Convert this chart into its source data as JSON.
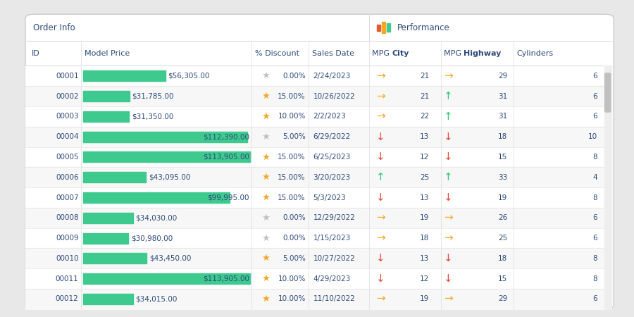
{
  "bg_color": "#e8e8e8",
  "table_bg": "#ffffff",
  "border_color": "#cccccc",
  "row_bg_even": "#ffffff",
  "row_bg_odd": "#f7f7f7",
  "text_color": "#2d4a7a",
  "bar_color": "#3ec98e",
  "scrollbar_color": "#c0c0c0",
  "group_line_color": "#dddddd",
  "star_gold": "#f5a623",
  "star_gray": "#c0c0c0",
  "arrow_orange": "#f5a623",
  "arrow_green": "#2ecc71",
  "arrow_red": "#e74c3c",
  "icon_colors": [
    "#e05c2a",
    "#f5a623",
    "#3ec98e"
  ],
  "rows": [
    {
      "id": "00001",
      "price": 56305.0,
      "discount": "0.00%",
      "date": "2/24/2023",
      "star": "gray",
      "city_arrow": "orange",
      "city": 21,
      "hwy_arrow": "orange",
      "hwy": 29,
      "cyl": 6
    },
    {
      "id": "00002",
      "price": 31785.0,
      "discount": "15.00%",
      "date": "10/26/2022",
      "star": "gold",
      "city_arrow": "orange",
      "city": 21,
      "hwy_arrow": "green",
      "hwy": 31,
      "cyl": 6
    },
    {
      "id": "00003",
      "price": 31350.0,
      "discount": "10.00%",
      "date": "2/2/2023",
      "star": "gold",
      "city_arrow": "orange",
      "city": 22,
      "hwy_arrow": "green",
      "hwy": 31,
      "cyl": 6
    },
    {
      "id": "00004",
      "price": 112390.0,
      "discount": "5.00%",
      "date": "6/29/2022",
      "star": "gray",
      "city_arrow": "red",
      "city": 13,
      "hwy_arrow": "red",
      "hwy": 18,
      "cyl": 10
    },
    {
      "id": "00005",
      "price": 113905.0,
      "discount": "15.00%",
      "date": "6/25/2023",
      "star": "gold",
      "city_arrow": "red",
      "city": 12,
      "hwy_arrow": "red",
      "hwy": 15,
      "cyl": 8
    },
    {
      "id": "00006",
      "price": 43095.0,
      "discount": "15.00%",
      "date": "3/20/2023",
      "star": "gold",
      "city_arrow": "green",
      "city": 25,
      "hwy_arrow": "green",
      "hwy": 33,
      "cyl": 4
    },
    {
      "id": "00007",
      "price": 99995.0,
      "discount": "15.00%",
      "date": "5/3/2023",
      "star": "gold",
      "city_arrow": "red",
      "city": 13,
      "hwy_arrow": "red",
      "hwy": 19,
      "cyl": 8
    },
    {
      "id": "00008",
      "price": 34030.0,
      "discount": "0.00%",
      "date": "12/29/2022",
      "star": "gray",
      "city_arrow": "orange",
      "city": 19,
      "hwy_arrow": "orange",
      "hwy": 26,
      "cyl": 6
    },
    {
      "id": "00009",
      "price": 30980.0,
      "discount": "0.00%",
      "date": "1/15/2023",
      "star": "gray",
      "city_arrow": "orange",
      "city": 18,
      "hwy_arrow": "orange",
      "hwy": 25,
      "cyl": 6
    },
    {
      "id": "00010",
      "price": 43450.0,
      "discount": "5.00%",
      "date": "10/27/2022",
      "star": "gold",
      "city_arrow": "red",
      "city": 13,
      "hwy_arrow": "red",
      "hwy": 18,
      "cyl": 8
    },
    {
      "id": "00011",
      "price": 113905.0,
      "discount": "10.00%",
      "date": "4/29/2023",
      "star": "gold",
      "city_arrow": "red",
      "city": 12,
      "hwy_arrow": "red",
      "hwy": 15,
      "cyl": 8
    },
    {
      "id": "00012",
      "price": 34015.0,
      "discount": "10.00%",
      "date": "11/10/2022",
      "star": "gold",
      "city_arrow": "orange",
      "city": 19,
      "hwy_arrow": "orange",
      "hwy": 29,
      "cyl": 6
    }
  ]
}
